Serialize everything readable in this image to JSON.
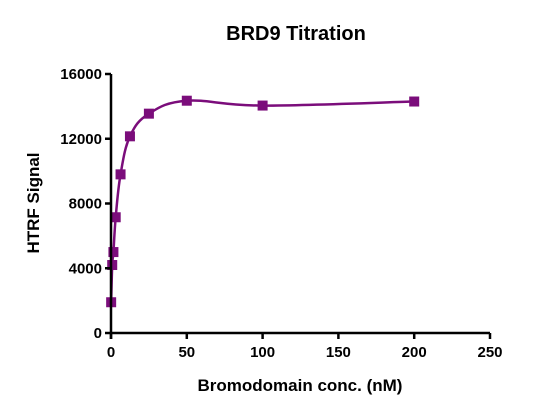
{
  "chart_data": {
    "type": "scatter",
    "title": "BRD9 Titration",
    "xlabel": "Bromodomain conc. (nM)",
    "ylabel": "HTRF Signal",
    "xlim": [
      0,
      250
    ],
    "ylim": [
      0,
      16000
    ],
    "x_ticks": [
      0,
      50,
      100,
      150,
      200,
      250
    ],
    "y_ticks": [
      0,
      4000,
      8000,
      12000,
      16000
    ],
    "x_tick_labels": [
      "0",
      "50",
      "100",
      "150",
      "200",
      "250"
    ],
    "y_tick_labels": [
      "0",
      "4000",
      "8000",
      "12000",
      "16000"
    ],
    "grid": false,
    "legend": "none",
    "marker": "square",
    "fit_line": true,
    "color": "#7b0d7b",
    "series": [
      {
        "x": [
          0.1,
          0.8,
          1.6,
          3.1,
          6.3,
          12.5,
          25,
          50,
          100,
          200
        ],
        "y": [
          1900,
          4200,
          5000,
          7150,
          9800,
          12150,
          13550,
          14350,
          14050,
          14300
        ]
      }
    ]
  }
}
